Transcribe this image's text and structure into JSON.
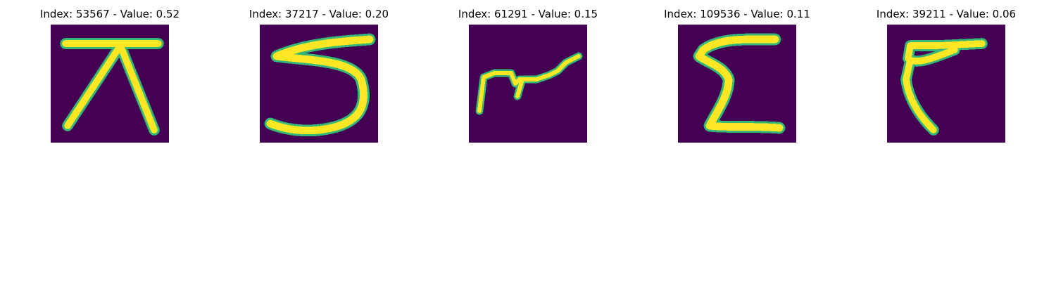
{
  "figure": {
    "background_color": "#440154",
    "stroke_color": "#fde725",
    "edge_color": "#35b779",
    "panels": [
      {
        "title": "Index: 53567 - Value: 0.52",
        "glyph": "hand-drawn-character"
      },
      {
        "title": "Index: 37217 - Value: 0.20",
        "glyph": "hand-drawn-character"
      },
      {
        "title": "Index: 61291 - Value: 0.15",
        "glyph": "hand-drawn-character"
      },
      {
        "title": "Index: 109536 - Value: 0.11",
        "glyph": "hand-drawn-character"
      },
      {
        "title": "Index: 39211 - Value: 0.06",
        "glyph": "hand-drawn-character"
      }
    ]
  }
}
